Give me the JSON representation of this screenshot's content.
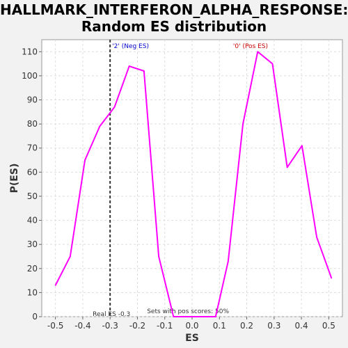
{
  "title_line1": "HALLMARK_INTERFERON_ALPHA_RESPONSE:",
  "title_line2": "Random ES distribution",
  "chart_data": {
    "type": "line",
    "xlabel": "ES",
    "ylabel": "P(ES)",
    "xlim": [
      -0.55,
      0.55
    ],
    "ylim": [
      0,
      115
    ],
    "x_ticks": [
      -0.5,
      -0.4,
      -0.3,
      -0.2,
      -0.1,
      0.0,
      0.1,
      0.2,
      0.3,
      0.4,
      0.5
    ],
    "x_tick_labels": [
      "-0.5",
      "-0.4",
      "-0.3",
      "-0.2",
      "-0.1",
      "0.0",
      "0.1",
      "0.2",
      "0.3",
      "0.4",
      "0.5"
    ],
    "y_ticks": [
      0,
      10,
      20,
      30,
      40,
      50,
      60,
      70,
      80,
      90,
      100,
      110
    ],
    "grid": true,
    "line_color": "#ff00ff",
    "series": [
      {
        "x": [
          -0.5,
          -0.446,
          -0.392,
          -0.338,
          -0.284,
          -0.23,
          -0.176,
          -0.122,
          -0.068,
          -0.014,
          0.04,
          0.086,
          0.132,
          0.186,
          0.24,
          0.294,
          0.348,
          0.402,
          0.456,
          0.51
        ],
        "values": [
          13,
          25,
          65,
          79,
          87,
          104,
          102,
          25,
          0,
          0,
          0,
          0,
          23,
          80,
          110,
          105,
          62,
          71,
          33,
          16
        ]
      }
    ],
    "real_es": -0.3,
    "real_es_label": "Real ES -0.3",
    "neg_label": "'2' (Neg ES)",
    "pos_label": "'0' (Pos ES)",
    "neg_color": "#0000cc",
    "pos_color": "#cc0000",
    "footer_note": "Sets with pos scores: 50%"
  }
}
